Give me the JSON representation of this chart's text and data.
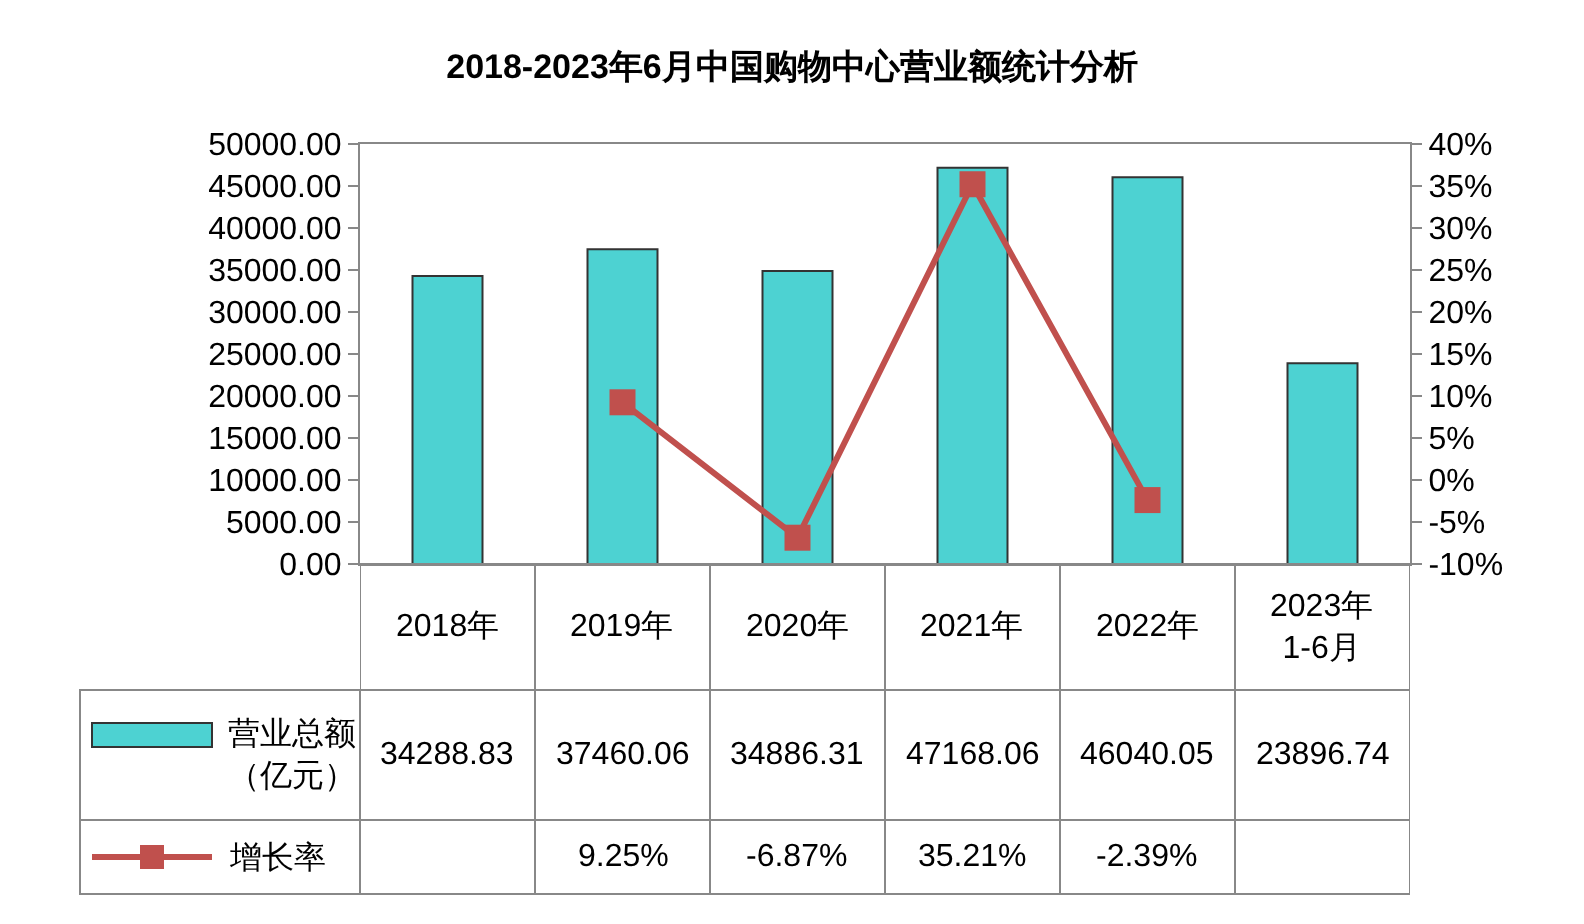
{
  "chart_data": {
    "type": "bar",
    "title": "2018-2023年6月中国购物中心营业额统计分析",
    "categories": [
      "2018年",
      "2019年",
      "2020年",
      "2021年",
      "2022年",
      "2023年\n1-6月"
    ],
    "series": [
      {
        "name": "营业总额（亿元）",
        "color": "#4dd2d2",
        "values": [
          34288.83,
          37460.06,
          34886.31,
          47168.06,
          46040.05,
          23896.74
        ],
        "value_labels": [
          "34288.83",
          "37460.06",
          "34886.31",
          "47168.06",
          "46040.05",
          "23896.74"
        ]
      },
      {
        "name": "增长率",
        "type": "line",
        "axis": "y2",
        "color": "#c0504d",
        "marker": "square",
        "values": [
          null,
          9.25,
          -6.87,
          35.21,
          -2.39,
          null
        ],
        "value_labels": [
          null,
          "9.25%",
          "-6.87%",
          "35.21%",
          "-2.39%",
          null
        ]
      }
    ],
    "ylim": [
      0,
      50000
    ],
    "yticks": [
      {
        "value": 0,
        "label": "0.00"
      },
      {
        "value": 5000,
        "label": "5000.00"
      },
      {
        "value": 10000,
        "label": "10000.00"
      },
      {
        "value": 15000,
        "label": "15000.00"
      },
      {
        "value": 20000,
        "label": "20000.00"
      },
      {
        "value": 25000,
        "label": "25000.00"
      },
      {
        "value": 30000,
        "label": "30000.00"
      },
      {
        "value": 35000,
        "label": "35000.00"
      },
      {
        "value": 40000,
        "label": "40000.00"
      },
      {
        "value": 45000,
        "label": "45000.00"
      },
      {
        "value": 50000,
        "label": "50000.00"
      }
    ],
    "y2lim": [
      -10,
      40
    ],
    "y2ticks": [
      {
        "value": -10,
        "label": "-10%"
      },
      {
        "value": -5,
        "label": "-5%"
      },
      {
        "value": 0,
        "label": "0%"
      },
      {
        "value": 5,
        "label": "5%"
      },
      {
        "value": 10,
        "label": "10%"
      },
      {
        "value": 15,
        "label": "15%"
      },
      {
        "value": 20,
        "label": "20%"
      },
      {
        "value": 25,
        "label": "25%"
      },
      {
        "value": 30,
        "label": "30%"
      },
      {
        "value": 35,
        "label": "35%"
      },
      {
        "value": 40,
        "label": "40%"
      }
    ],
    "grid": false,
    "legend": "bottom left"
  }
}
